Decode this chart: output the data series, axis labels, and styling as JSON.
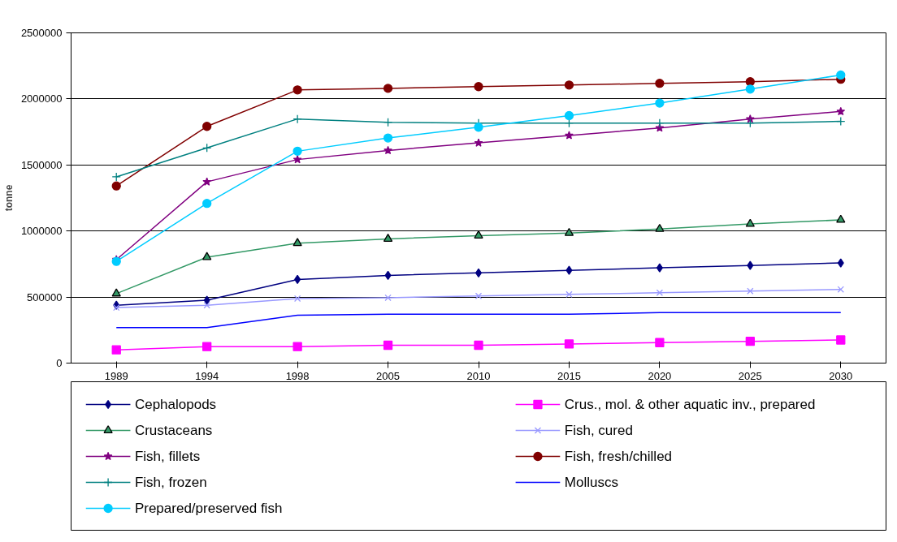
{
  "chart_data": {
    "type": "line",
    "ylabel": "tonne",
    "categories": [
      "1989",
      "1994",
      "1998",
      "2005",
      "2010",
      "2015",
      "2020",
      "2025",
      "2030"
    ],
    "ylim": [
      0,
      2500000
    ],
    "yticks": [
      0,
      500000,
      1000000,
      1500000,
      2000000,
      2500000
    ],
    "grid": "y",
    "legend": "bottom",
    "series": [
      {
        "name": "Cephalopods",
        "color": "#000080",
        "marker": "diamond",
        "values": [
          438000,
          476000,
          633000,
          664000,
          683000,
          702000,
          721000,
          739000,
          758000
        ]
      },
      {
        "name": "Crus., mol. & other aquatic inv., prepared",
        "color": "#ff00ff",
        "marker": "square",
        "values": [
          100000,
          125000,
          125000,
          135000,
          135000,
          145000,
          155000,
          165000,
          175000
        ]
      },
      {
        "name": "Crustaceans",
        "color": "#339966",
        "marker": "triangle",
        "values": [
          526000,
          802000,
          908000,
          940000,
          965000,
          984000,
          1015000,
          1053000,
          1084000
        ]
      },
      {
        "name": "Fish, cured",
        "color": "#9999ff",
        "marker": "x",
        "values": [
          420000,
          438000,
          489000,
          495000,
          508000,
          520000,
          533000,
          545000,
          558000
        ]
      },
      {
        "name": "Fish, fillets",
        "color": "#800080",
        "marker": "star",
        "values": [
          783000,
          1372000,
          1541000,
          1610000,
          1667000,
          1723000,
          1780000,
          1848000,
          1905000
        ]
      },
      {
        "name": "Fish, fresh/chilled",
        "color": "#800000",
        "marker": "circle",
        "values": [
          1341000,
          1792000,
          2068000,
          2080000,
          2093000,
          2105000,
          2118000,
          2130000,
          2149000
        ]
      },
      {
        "name": "Fish, frozen",
        "color": "#008080",
        "marker": "cross",
        "values": [
          1410000,
          1629000,
          1848000,
          1823000,
          1817000,
          1817000,
          1817000,
          1817000,
          1830000
        ]
      },
      {
        "name": "Molluscs",
        "color": "#0000ff",
        "marker": "none",
        "values": [
          269000,
          269000,
          363000,
          370000,
          370000,
          370000,
          382000,
          382000,
          382000
        ]
      },
      {
        "name": "Prepared/preserved fish",
        "color": "#00ccff",
        "marker": "circle",
        "values": [
          770000,
          1209000,
          1604000,
          1704000,
          1786000,
          1874000,
          1968000,
          2074000,
          2181000
        ]
      }
    ]
  }
}
